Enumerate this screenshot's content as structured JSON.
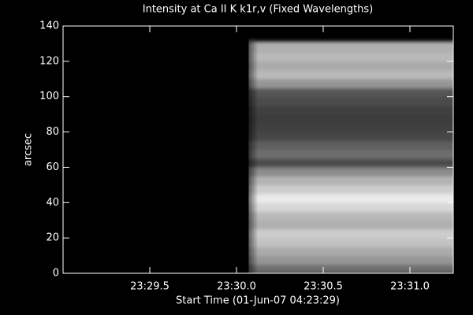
{
  "chart_data": {
    "type": "image",
    "title": "Intensity at Ca II K k1r,v (Fixed Wavelengths)",
    "x_label": "Start Time (01-Jun-07 04:23:29)",
    "y_label": "arcsec",
    "xlim": [
      29.0,
      31.25
    ],
    "xticks": [
      {
        "value": 29.5,
        "label": "23:29.5"
      },
      {
        "value": 30.0,
        "label": "23:30.0"
      },
      {
        "value": 30.5,
        "label": "23:30.5"
      },
      {
        "value": 31.0,
        "label": "23:31.0"
      }
    ],
    "ylim": [
      0,
      140
    ],
    "yticks": [
      0,
      20,
      40,
      60,
      80,
      100,
      120,
      140
    ],
    "image_x": [
      30.07,
      31.25
    ],
    "y_edges": [
      0,
      5,
      10,
      15,
      20,
      25,
      30,
      35,
      40,
      45,
      50,
      55,
      60,
      65,
      70,
      75,
      80,
      85,
      90,
      95,
      100,
      105,
      110,
      115,
      120,
      125,
      131
    ],
    "intensity": [
      110,
      150,
      170,
      195,
      205,
      175,
      185,
      215,
      235,
      205,
      180,
      140,
      75,
      110,
      95,
      70,
      65,
      60,
      65,
      75,
      85,
      150,
      185,
      170,
      185,
      175
    ]
  }
}
